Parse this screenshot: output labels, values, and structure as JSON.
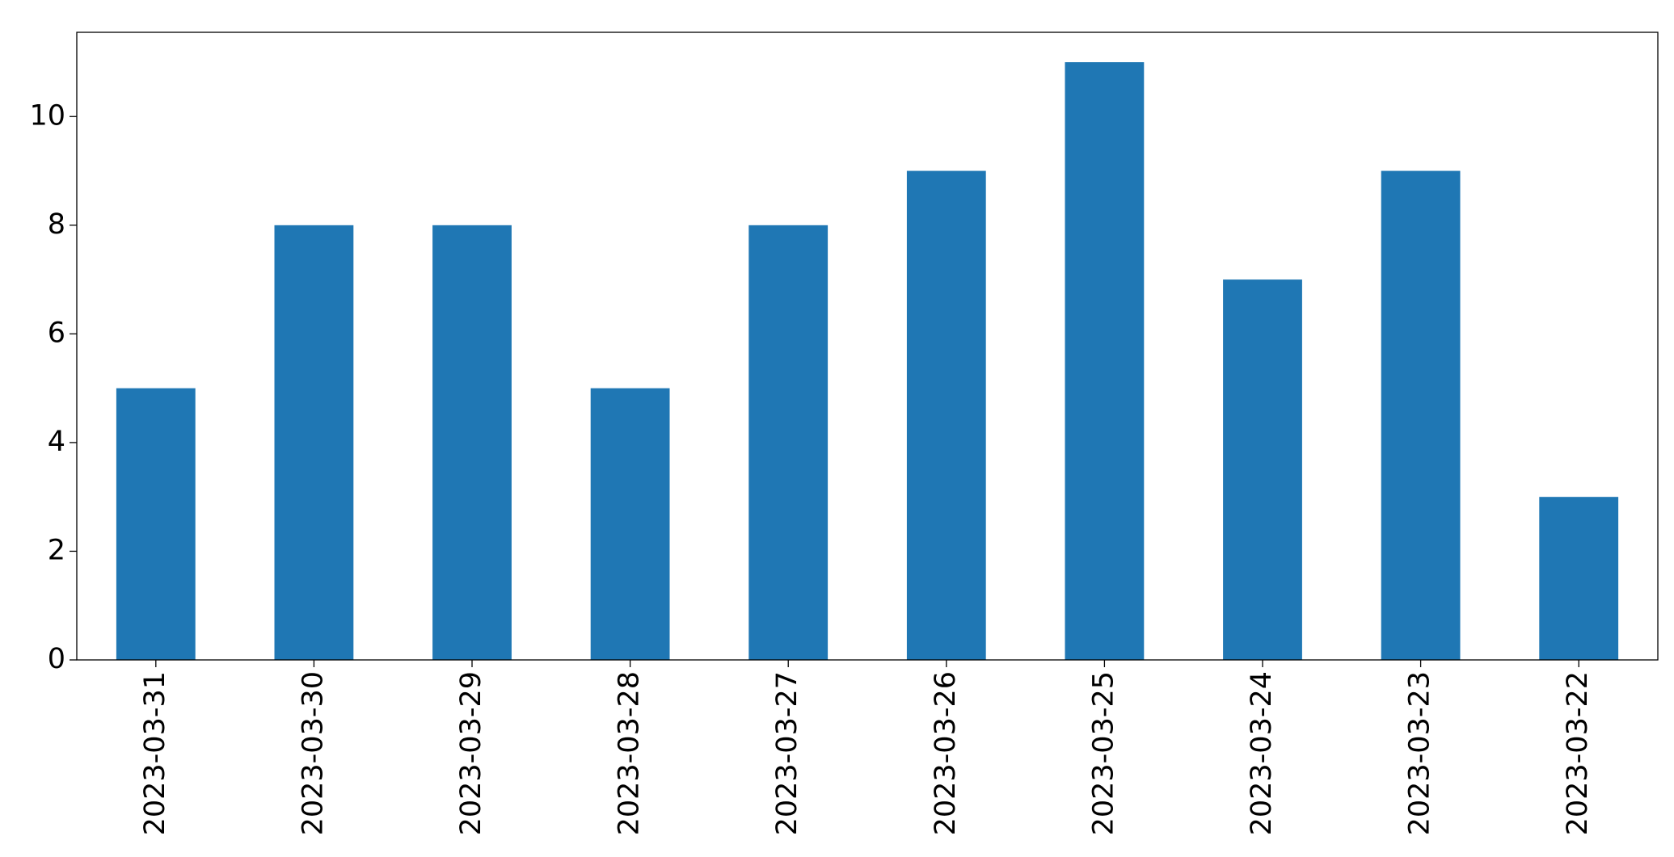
{
  "chart_data": {
    "type": "bar",
    "categories": [
      "2023-03-31",
      "2023-03-30",
      "2023-03-29",
      "2023-03-28",
      "2023-03-27",
      "2023-03-26",
      "2023-03-25",
      "2023-03-24",
      "2023-03-23",
      "2023-03-22"
    ],
    "values": [
      5,
      8,
      8,
      5,
      8,
      9,
      11,
      7,
      9,
      3
    ],
    "color": "#1f77b4",
    "ylim": [
      0,
      11.55
    ],
    "yticks": [
      0,
      2,
      4,
      6,
      8,
      10
    ],
    "grid": false
  }
}
